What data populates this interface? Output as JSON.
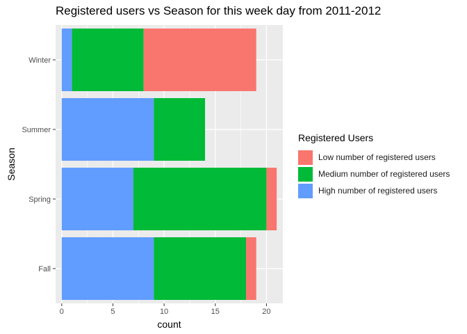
{
  "chart_data": {
    "type": "bar",
    "orientation": "horizontal",
    "stacked": true,
    "title": "Registered users vs Season for this week day from 2011-2012",
    "xlabel": "count",
    "ylabel": "Season",
    "categories": [
      "Fall",
      "Spring",
      "Summer",
      "Winter"
    ],
    "xlim": [
      -0.6,
      21.6
    ],
    "xticks": [
      0,
      5,
      10,
      15,
      20
    ],
    "grid": true,
    "legend_title": "Registered Users",
    "legend_position": "right",
    "series": [
      {
        "name": "High number of registered users",
        "color": "#619CFF",
        "values": [
          9,
          7,
          9,
          1
        ]
      },
      {
        "name": "Medium number of registered users",
        "color": "#00BA38",
        "values": [
          9,
          13,
          5,
          7
        ]
      },
      {
        "name": "Low number of registered users",
        "color": "#F8766D",
        "values": [
          1,
          1,
          0,
          11
        ]
      }
    ],
    "legend_order": [
      2,
      1,
      0
    ]
  }
}
